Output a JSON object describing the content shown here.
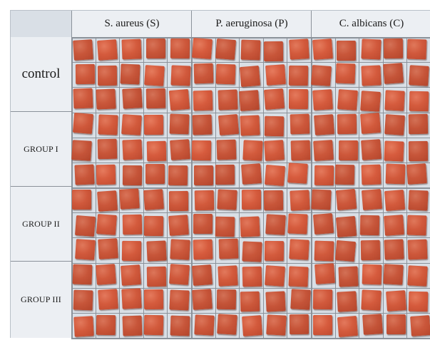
{
  "column_headers": [
    "S. aureus (S)",
    "P. aeruginosa (P)",
    "C. albicans (C)"
  ],
  "row_groups": [
    {
      "label": "control",
      "style": "big"
    },
    {
      "label": "GROUP I",
      "style": "small"
    },
    {
      "label": "GROUP II",
      "style": "small"
    },
    {
      "label": "GROUP III",
      "style": "small"
    }
  ],
  "grid": {
    "rows": 12,
    "columns": 15,
    "rows_per_group": 3,
    "columns_per_organism": 5
  },
  "colors": {
    "tile": "#d55b3d",
    "grid_line": "#8b929a",
    "background": "#d9dfe6"
  }
}
